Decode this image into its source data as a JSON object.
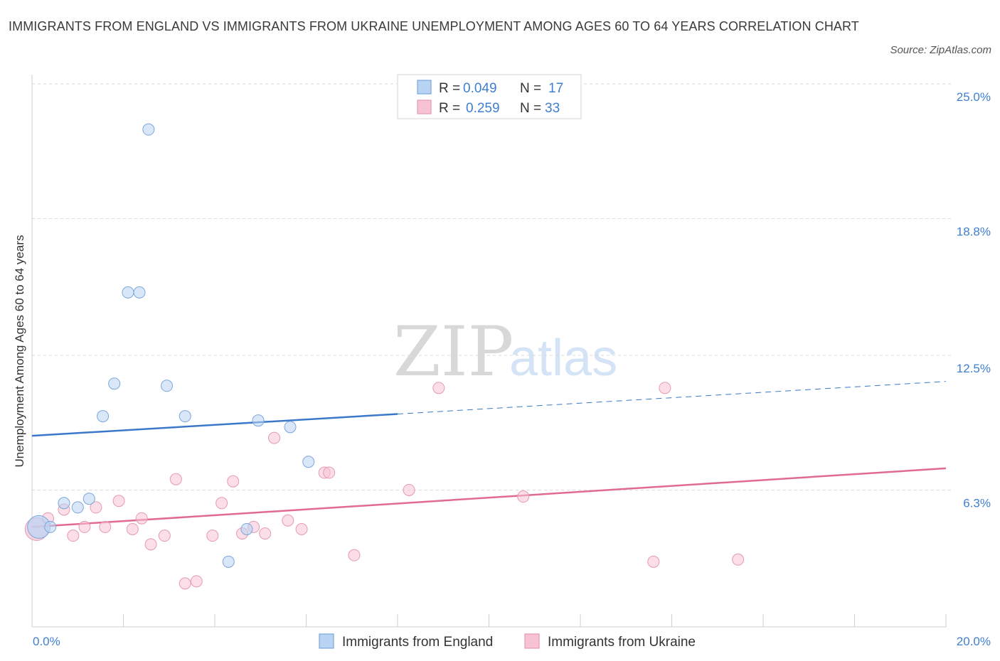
{
  "title": "IMMIGRANTS FROM ENGLAND VS IMMIGRANTS FROM UKRAINE UNEMPLOYMENT AMONG AGES 60 TO 64 YEARS CORRELATION CHART",
  "source": "Source: ZipAtlas.com",
  "watermark": {
    "part1": "ZIP",
    "part2": "atlas"
  },
  "colors": {
    "england": "#3b78c9",
    "england_fill": "#b9d3f3",
    "ukraine": "#e06a94",
    "ukraine_fill": "#f7c3d4",
    "tick_label": "#3f7fd0",
    "grid": "#d9d9d9"
  },
  "legend": {
    "england": {
      "r_label": "R =",
      "r_value": "0.049",
      "n_label": "N =",
      "n_value": "17"
    },
    "ukraine": {
      "r_label": "R =",
      "r_value": "0.259",
      "n_label": "N =",
      "n_value": "33"
    }
  },
  "chart_data": {
    "type": "scatter",
    "title": "IMMIGRANTS FROM ENGLAND VS IMMIGRANTS FROM UKRAINE UNEMPLOYMENT AMONG AGES 60 TO 64 YEARS CORRELATION CHART",
    "xlabel": "",
    "ylabel": "Unemployment Among Ages 60 to 64 years",
    "xlim": [
      0,
      20
    ],
    "ylim": [
      0,
      25
    ],
    "x_tick_labels": [
      "0.0%",
      "20.0%"
    ],
    "y_tick_labels": [
      "6.3%",
      "12.5%",
      "18.8%",
      "25.0%"
    ],
    "y_ticks": [
      6.3,
      12.5,
      18.8,
      25.0
    ],
    "grid": true,
    "legend_position": "bottom",
    "series": [
      {
        "name": "Immigrants from England",
        "trend": {
          "x0": 0,
          "y0": 8.8,
          "x1": 8.0,
          "y1": 9.8,
          "dashed_to_x": 20,
          "dashed_to_y": 11.3
        },
        "points": [
          {
            "x": 0.15,
            "y": 4.6,
            "large": true
          },
          {
            "x": 0.4,
            "y": 4.6
          },
          {
            "x": 0.7,
            "y": 5.7
          },
          {
            "x": 1.0,
            "y": 5.5
          },
          {
            "x": 1.25,
            "y": 5.9
          },
          {
            "x": 1.55,
            "y": 9.7
          },
          {
            "x": 1.8,
            "y": 11.2
          },
          {
            "x": 2.1,
            "y": 15.4
          },
          {
            "x": 2.35,
            "y": 15.4
          },
          {
            "x": 2.55,
            "y": 22.9
          },
          {
            "x": 2.95,
            "y": 11.1
          },
          {
            "x": 3.35,
            "y": 9.7
          },
          {
            "x": 4.3,
            "y": 3.0
          },
          {
            "x": 4.7,
            "y": 4.5
          },
          {
            "x": 4.95,
            "y": 9.5
          },
          {
            "x": 5.65,
            "y": 9.2
          },
          {
            "x": 6.05,
            "y": 7.6
          }
        ]
      },
      {
        "name": "Immigrants from Ukraine",
        "trend": {
          "x0": 0,
          "y0": 4.6,
          "x1": 20,
          "y1": 7.3
        },
        "points": [
          {
            "x": 0.1,
            "y": 4.5,
            "large": true
          },
          {
            "x": 0.35,
            "y": 5.0
          },
          {
            "x": 0.7,
            "y": 5.4
          },
          {
            "x": 0.9,
            "y": 4.2
          },
          {
            "x": 1.15,
            "y": 4.6
          },
          {
            "x": 1.4,
            "y": 5.5
          },
          {
            "x": 1.6,
            "y": 4.6
          },
          {
            "x": 1.9,
            "y": 5.8
          },
          {
            "x": 2.2,
            "y": 4.5
          },
          {
            "x": 2.4,
            "y": 5.0
          },
          {
            "x": 2.6,
            "y": 3.8
          },
          {
            "x": 2.9,
            "y": 4.2
          },
          {
            "x": 3.15,
            "y": 6.8
          },
          {
            "x": 3.35,
            "y": 2.0
          },
          {
            "x": 3.6,
            "y": 2.1
          },
          {
            "x": 3.95,
            "y": 4.2
          },
          {
            "x": 4.15,
            "y": 5.7
          },
          {
            "x": 4.4,
            "y": 6.7
          },
          {
            "x": 4.6,
            "y": 4.3
          },
          {
            "x": 4.85,
            "y": 4.6
          },
          {
            "x": 5.1,
            "y": 4.3
          },
          {
            "x": 5.3,
            "y": 8.7
          },
          {
            "x": 5.6,
            "y": 4.9
          },
          {
            "x": 5.9,
            "y": 4.5
          },
          {
            "x": 6.4,
            "y": 7.1
          },
          {
            "x": 6.5,
            "y": 7.1
          },
          {
            "x": 7.05,
            "y": 3.3
          },
          {
            "x": 8.25,
            "y": 6.3
          },
          {
            "x": 8.9,
            "y": 11.0
          },
          {
            "x": 10.75,
            "y": 6.0
          },
          {
            "x": 13.6,
            "y": 3.0
          },
          {
            "x": 13.85,
            "y": 11.0
          },
          {
            "x": 15.45,
            "y": 3.1
          }
        ]
      }
    ]
  }
}
